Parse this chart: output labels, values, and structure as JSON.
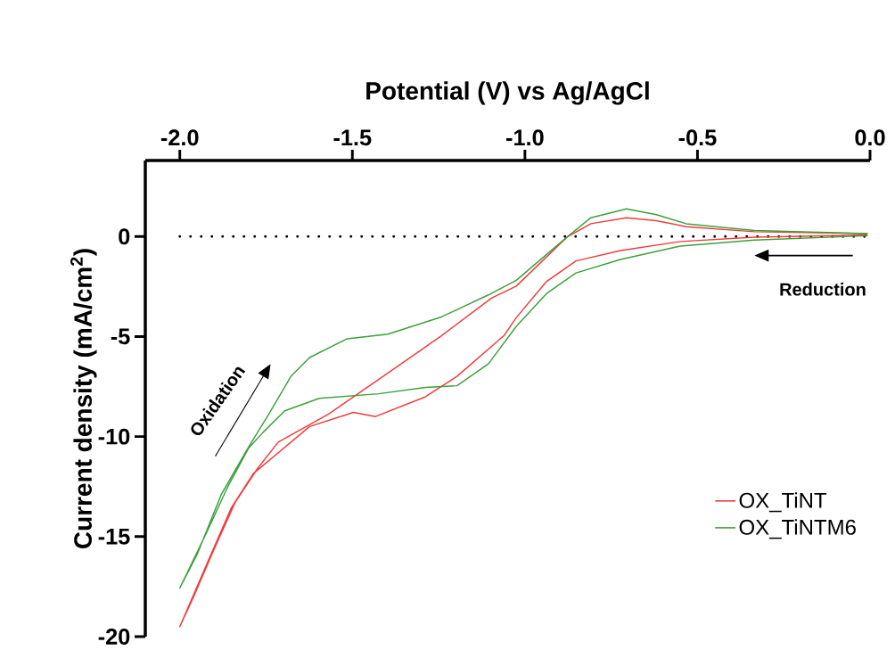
{
  "chart_data": {
    "type": "line",
    "xlabel": "Potential (V) vs Ag/AgCl",
    "ylabel": "Current density (mA/cm$^{2}$)",
    "xlim": [
      -2.1,
      0
    ],
    "ylim": [
      -20,
      3.8
    ],
    "xticks": [
      {
        "value": -2,
        "label": "-2.0"
      },
      -1.5,
      {
        "value": -1,
        "label": "-1.0"
      },
      -0.5,
      {
        "value": 0,
        "label": "0.0"
      }
    ],
    "yticks": [
      -20,
      -15,
      -10,
      -5,
      0
    ],
    "legend": "bottom right",
    "ref_lines": [
      {
        "axis": "y",
        "value": 0,
        "line_style": "dotted",
        "color": "#000000"
      }
    ],
    "annotations": [
      "Oxidation",
      "Reduction"
    ],
    "series": [
      {
        "name": "OX_TiNT",
        "color": "#f03c3c",
        "x": [
          -0.007,
          -0.335,
          -0.55,
          -0.723,
          -0.852,
          -0.938,
          -1.025,
          -1.061,
          -1.197,
          -1.288,
          -1.433,
          -1.497,
          -1.624,
          -1.787,
          -1.851,
          -1.915,
          -1.969,
          -2.0,
          -1.96,
          -1.905,
          -1.84,
          -1.775,
          -1.715,
          -1.569,
          -1.424,
          -1.242,
          -1.097,
          -1.025,
          -0.878,
          -0.809,
          -0.706,
          -0.619,
          -0.533,
          -0.335,
          -0.007
        ],
        "values": [
          0.08,
          -0.03,
          -0.25,
          -0.7,
          -1.22,
          -2.26,
          -4.05,
          -4.96,
          -6.99,
          -8.01,
          -9.0,
          -8.79,
          -9.5,
          -11.85,
          -13.57,
          -16.1,
          -18.26,
          -19.5,
          -18.0,
          -15.8,
          -13.3,
          -11.6,
          -10.28,
          -8.87,
          -7.15,
          -4.96,
          -3.08,
          -2.48,
          -0.03,
          0.64,
          0.94,
          0.79,
          0.49,
          0.24,
          0.15
        ]
      },
      {
        "name": "OX_TiNTM6",
        "color": "#3ca03c",
        "x": [
          -0.007,
          -0.335,
          -0.55,
          -0.723,
          -0.852,
          -0.938,
          -1.025,
          -1.106,
          -1.197,
          -1.288,
          -1.424,
          -1.596,
          -1.696,
          -1.76,
          -1.801,
          -1.86,
          -1.923,
          -2.0,
          -1.95,
          -1.88,
          -1.8,
          -1.742,
          -1.678,
          -1.624,
          -1.515,
          -1.397,
          -1.242,
          -1.106,
          -1.025,
          -0.878,
          -0.809,
          -0.706,
          -0.619,
          -0.533,
          -0.335,
          -0.007
        ],
        "values": [
          0.04,
          -0.18,
          -0.48,
          -1.15,
          -1.82,
          -2.86,
          -4.49,
          -6.37,
          -7.46,
          -7.54,
          -7.86,
          -8.09,
          -8.71,
          -9.81,
          -10.59,
          -12.47,
          -14.82,
          -17.57,
          -15.9,
          -12.9,
          -10.5,
          -8.87,
          -6.99,
          -6.05,
          -5.11,
          -4.88,
          -4.02,
          -2.92,
          -2.19,
          -0.03,
          0.94,
          1.38,
          1.09,
          0.64,
          0.3,
          0.15
        ]
      }
    ]
  }
}
